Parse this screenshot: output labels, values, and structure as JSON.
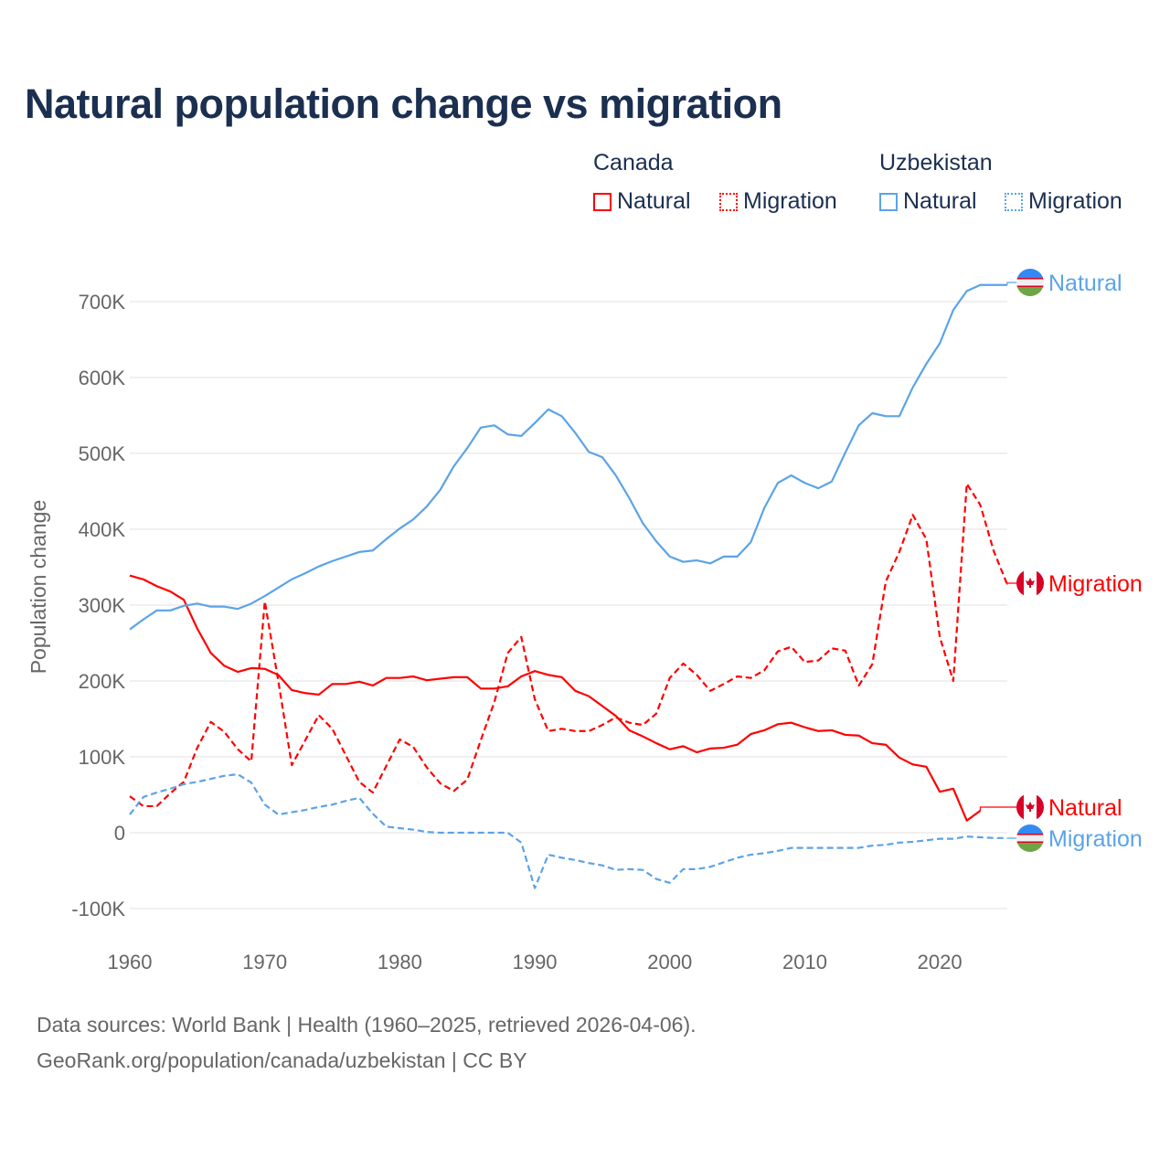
{
  "title": "Natural population change vs migration",
  "legend": {
    "groups": [
      {
        "name": "Canada",
        "items": [
          "Natural",
          "Migration"
        ],
        "color": "#ff0000"
      },
      {
        "name": "Uzbekistan",
        "items": [
          "Natural",
          "Migration"
        ],
        "color": "#5ba3e8"
      }
    ]
  },
  "source": {
    "line1": "Data sources: World Bank | Health (1960–2025, retrieved 2026-04-06).",
    "line2": "GeoRank.org/population/canada/uzbekistan | CC BY"
  },
  "chart_data": {
    "type": "line",
    "title": "Natural population change vs migration",
    "xlabel": "",
    "ylabel": "Population change",
    "xlim": [
      1960,
      2025
    ],
    "ylim": [
      -100000,
      700000
    ],
    "x_ticks": [
      1960,
      1970,
      1980,
      1990,
      2000,
      2010,
      2020
    ],
    "x_tick_labels": [
      "1960",
      "1970",
      "1980",
      "1990",
      "2000",
      "2010",
      "2020"
    ],
    "y_ticks": [
      -100000,
      0,
      100000,
      200000,
      300000,
      400000,
      500000,
      600000,
      700000
    ],
    "y_tick_labels": [
      "-100K",
      "0",
      "100K",
      "200K",
      "300K",
      "400K",
      "500K",
      "600K",
      "700K"
    ],
    "grid": true,
    "legend_position": "top-right",
    "start_year": 1960,
    "units": "thousands",
    "series": [
      {
        "name": "Canada Natural",
        "end_label": "Natural",
        "color": "#ff0000",
        "dash": false,
        "flag": "canada",
        "values": [
          339,
          334,
          325,
          318,
          307,
          269,
          237,
          220,
          212,
          217,
          216,
          208,
          188,
          184,
          182,
          196,
          196,
          199,
          194,
          204,
          204,
          206,
          201,
          203,
          205,
          205,
          190,
          190,
          193,
          206,
          213,
          208,
          205,
          187,
          180,
          167,
          154,
          135,
          127,
          118,
          110,
          114,
          106,
          111,
          112,
          116,
          130,
          135,
          143,
          145,
          139,
          134,
          135,
          129,
          128,
          118,
          116,
          99,
          90,
          87,
          54,
          58,
          16,
          29
        ]
      },
      {
        "name": "Canada Migration",
        "end_label": "Migration",
        "color": "#ff0000",
        "dash": true,
        "flag": "canada",
        "values": [
          48,
          35,
          35,
          52,
          67,
          112,
          146,
          133,
          110,
          94,
          305,
          200,
          89,
          122,
          155,
          137,
          102,
          67,
          53,
          88,
          123,
          113,
          86,
          65,
          55,
          70,
          122,
          172,
          237,
          258,
          176,
          134,
          137,
          134,
          134,
          142,
          152,
          145,
          142,
          157,
          204,
          223,
          208,
          187,
          196,
          206,
          204,
          214,
          239,
          245,
          225,
          227,
          243,
          240,
          194,
          222,
          331,
          370,
          419,
          387,
          258,
          200,
          460,
          432,
          371,
          327
        ]
      },
      {
        "name": "Uzbekistan Natural",
        "end_label": "Natural",
        "color": "#5ba3e8",
        "dash": false,
        "flag": "uzbekistan",
        "values": [
          268,
          281,
          293,
          293,
          299,
          302,
          298,
          298,
          295,
          302,
          312,
          323,
          334,
          342,
          351,
          358,
          364,
          370,
          372,
          387,
          401,
          413,
          430,
          452,
          483,
          507,
          534,
          537,
          525,
          523,
          540,
          558,
          549,
          527,
          502,
          495,
          471,
          441,
          408,
          384,
          364,
          357,
          359,
          355,
          364,
          364,
          383,
          428,
          461,
          471,
          461,
          454,
          463,
          501,
          537,
          553,
          549,
          549,
          587,
          618,
          645,
          689,
          714,
          722,
          722,
          722
        ]
      },
      {
        "name": "Uzbekistan Migration",
        "end_label": "Migration",
        "color": "#5ba3e8",
        "dash": true,
        "flag": "uzbekistan",
        "values": [
          24,
          47,
          53,
          58,
          64,
          67,
          71,
          75,
          77,
          66,
          37,
          24,
          27,
          30,
          34,
          37,
          42,
          46,
          25,
          8,
          6,
          4,
          1,
          0,
          0,
          0,
          0,
          0,
          0,
          -13,
          -73,
          -29,
          -33,
          -36,
          -40,
          -43,
          -49,
          -48,
          -49,
          -61,
          -66,
          -48,
          -48,
          -45,
          -39,
          -33,
          -29,
          -27,
          -24,
          -20,
          -20,
          -20,
          -20,
          -20,
          -20,
          -17,
          -16,
          -13,
          -12,
          -10,
          -8,
          -8,
          -5,
          -6,
          -7,
          -7
        ]
      }
    ]
  }
}
